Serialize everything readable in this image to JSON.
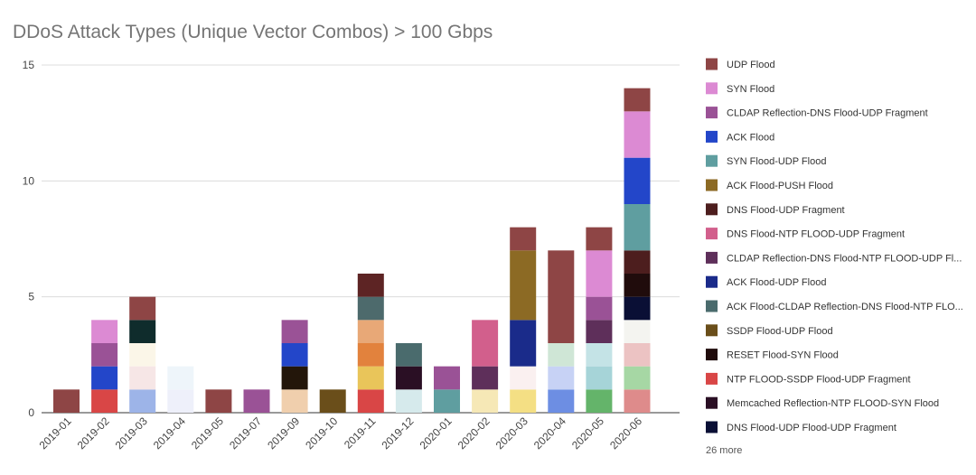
{
  "chart_data": {
    "type": "bar",
    "stacked": true,
    "title": "DDoS Attack Types (Unique Vector Combos) > 100 Gbps",
    "xlabel": "",
    "ylabel": "",
    "ylim": [
      0,
      15
    ],
    "yticks": [
      0,
      5,
      10,
      15
    ],
    "grid": true,
    "legend_position": "right",
    "categories": [
      "2019-01",
      "2019-02",
      "2019-03",
      "2019-04",
      "2019-05",
      "2019-07",
      "2019-09",
      "2019-10",
      "2019-11",
      "2019-12",
      "2020-01",
      "2020-02",
      "2020-03",
      "2020-04",
      "2020-05",
      "2020-06"
    ],
    "totals": [
      1,
      4,
      5,
      2,
      1,
      1,
      4,
      1,
      6,
      3,
      2,
      4,
      8,
      7,
      8,
      14
    ],
    "stacks": [
      [
        {
          "c": "#8e4545",
          "v": 1
        }
      ],
      [
        {
          "c": "#d94646",
          "v": 1
        },
        {
          "c": "#2346c9",
          "v": 1
        },
        {
          "c": "#9a5296",
          "v": 1
        },
        {
          "c": "#dc8ad3",
          "v": 1
        }
      ],
      [
        {
          "c": "#9db4e8",
          "v": 1
        },
        {
          "c": "#f6e6e6",
          "v": 1
        },
        {
          "c": "#fbf6e8",
          "v": 1
        },
        {
          "c": "#0f2c2c",
          "v": 1
        },
        {
          "c": "#8e4545",
          "v": 1
        }
      ],
      [
        {
          "c": "#eef0fa",
          "v": 1
        },
        {
          "c": "#eef5fa",
          "v": 1
        }
      ],
      [
        {
          "c": "#8e4545",
          "v": 1
        }
      ],
      [
        {
          "c": "#9a5296",
          "v": 1
        }
      ],
      [
        {
          "c": "#f0cfad",
          "v": 1
        },
        {
          "c": "#23160a",
          "v": 1
        },
        {
          "c": "#2346c9",
          "v": 1
        },
        {
          "c": "#9a5296",
          "v": 1
        }
      ],
      [
        {
          "c": "#6a4e1a",
          "v": 1
        }
      ],
      [
        {
          "c": "#d94646",
          "v": 1
        },
        {
          "c": "#e9c55a",
          "v": 1
        },
        {
          "c": "#e2823d",
          "v": 1
        },
        {
          "c": "#e8a877",
          "v": 1
        },
        {
          "c": "#4d6a6c",
          "v": 1
        },
        {
          "c": "#5d2424",
          "v": 1
        }
      ],
      [
        {
          "c": "#d6eaec",
          "v": 1
        },
        {
          "c": "#2a0f24",
          "v": 1
        },
        {
          "c": "#4a6b6d",
          "v": 1
        }
      ],
      [
        {
          "c": "#5f9ea0",
          "v": 1
        },
        {
          "c": "#9a5296",
          "v": 1
        }
      ],
      [
        {
          "c": "#f6e8b6",
          "v": 1
        },
        {
          "c": "#5e2f5a",
          "v": 1
        },
        {
          "c": "#d25f8c",
          "v": 2
        }
      ],
      [
        {
          "c": "#f4df84",
          "v": 1
        },
        {
          "c": "#faf0f0",
          "v": 1
        },
        {
          "c": "#1a2b8a",
          "v": 2
        },
        {
          "c": "#8c6a24",
          "v": 3
        },
        {
          "c": "#8e4545",
          "v": 1
        }
      ],
      [
        {
          "c": "#6d8ee3",
          "v": 1
        },
        {
          "c": "#c7d2f5",
          "v": 1
        },
        {
          "c": "#cfe6d6",
          "v": 1
        },
        {
          "c": "#8e4545",
          "v": 4
        }
      ],
      [
        {
          "c": "#64b46a",
          "v": 1
        },
        {
          "c": "#a6d4d8",
          "v": 1
        },
        {
          "c": "#c4e3e6",
          "v": 1
        },
        {
          "c": "#5e2f5a",
          "v": 1
        },
        {
          "c": "#9a5296",
          "v": 1
        },
        {
          "c": "#dc8ad3",
          "v": 2
        },
        {
          "c": "#8e4545",
          "v": 1
        }
      ],
      [
        {
          "c": "#de8b8b",
          "v": 1
        },
        {
          "c": "#a6d7a4",
          "v": 1
        },
        {
          "c": "#ecc3c3",
          "v": 1
        },
        {
          "c": "#f4f4f0",
          "v": 1
        },
        {
          "c": "#0a0f35",
          "v": 1
        },
        {
          "c": "#200c0c",
          "v": 1
        },
        {
          "c": "#4d1e1e",
          "v": 1
        },
        {
          "c": "#5f9ea0",
          "v": 2
        },
        {
          "c": "#2346c9",
          "v": 2
        },
        {
          "c": "#dc8ad3",
          "v": 2
        },
        {
          "c": "#8e4545",
          "v": 1
        }
      ]
    ],
    "legend": [
      {
        "name": "UDP Flood",
        "color": "#8e4545"
      },
      {
        "name": "SYN Flood",
        "color": "#dc8ad3"
      },
      {
        "name": "CLDAP Reflection-DNS Flood-UDP Fragment",
        "color": "#9a5296"
      },
      {
        "name": "ACK Flood",
        "color": "#2346c9"
      },
      {
        "name": "SYN Flood-UDP Flood",
        "color": "#5f9ea0"
      },
      {
        "name": "ACK Flood-PUSH Flood",
        "color": "#8c6a24"
      },
      {
        "name": "DNS Flood-UDP Fragment",
        "color": "#4d1e1e"
      },
      {
        "name": "DNS Flood-NTP FLOOD-UDP Fragment",
        "color": "#d25f8c"
      },
      {
        "name": "CLDAP Reflection-DNS Flood-NTP FLOOD-UDP Fl...",
        "color": "#5e2f5a"
      },
      {
        "name": "ACK Flood-UDP Flood",
        "color": "#1a2b8a"
      },
      {
        "name": "ACK Flood-CLDAP Reflection-DNS Flood-NTP FLO...",
        "color": "#4a6b6d"
      },
      {
        "name": "SSDP Flood-UDP Flood",
        "color": "#6a4e1a"
      },
      {
        "name": "RESET Flood-SYN Flood",
        "color": "#200c0c"
      },
      {
        "name": "NTP FLOOD-SSDP Flood-UDP Fragment",
        "color": "#d94646"
      },
      {
        "name": "Memcached Reflection-NTP FLOOD-SYN Flood",
        "color": "#2a0f24"
      },
      {
        "name": "DNS Flood-UDP Flood-UDP Fragment",
        "color": "#0a0f35"
      }
    ],
    "more_text": "26 more"
  }
}
